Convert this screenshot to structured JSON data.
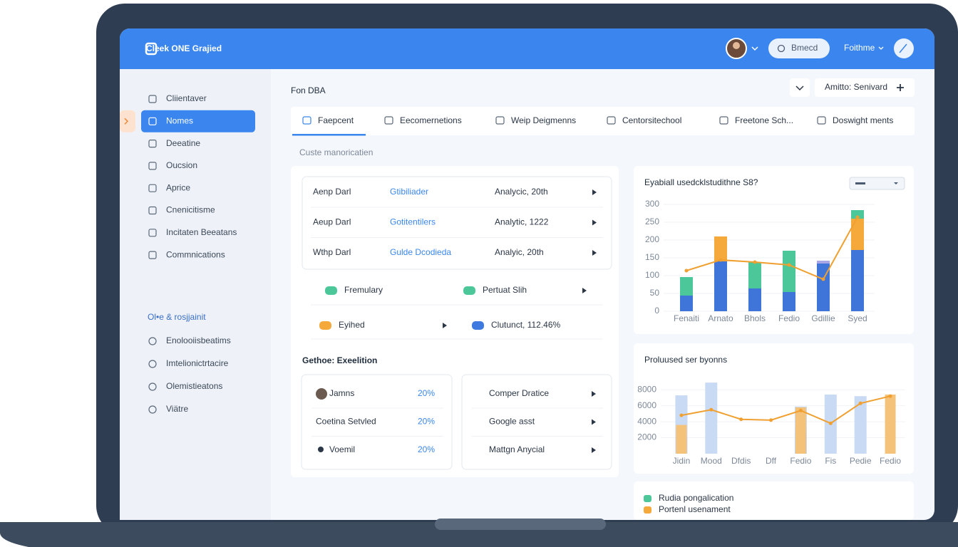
{
  "header": {
    "logo": "Cleek ONE Grajied",
    "button": "Bmecd",
    "menu": "Foithme"
  },
  "sidebar": {
    "items": [
      "Cliientaver",
      "Nomes",
      "Deeatine",
      "Oucsion",
      "Aprice",
      "Cnenicitisme",
      "Incitaten Beeatans",
      "Commnications"
    ],
    "active": 1,
    "section_title": "Ol•e & rosjjainit",
    "section_items": [
      "Enolooiisbeatims",
      "Imtelionictrtacire",
      "Olemistieatons",
      "Viätre"
    ]
  },
  "page": {
    "title": "Fon DBA",
    "action": "Amitto: Senivard"
  },
  "tabs": [
    "Faepcent",
    "Eecomernetions",
    "Weip Deigmenns",
    "Centorsitechool",
    "Freetone Sch...",
    "Doswight ments"
  ],
  "active_tab": 0,
  "section_label": "Custe manoricatien",
  "list_rows": [
    [
      "Aenp Darl",
      "Gtibiliader",
      "Analycic, 20th"
    ],
    [
      "Aeup Darl",
      "Gotitentilers",
      "Analytic, 1222"
    ],
    [
      "Wthp Darl",
      "Gulde Dcodieda",
      "Analyic, 20th"
    ]
  ],
  "status_items": [
    {
      "label": "Fremulary",
      "color": "#4cc79a"
    },
    {
      "label": "Pertuat Slih",
      "color": "#4cc79a"
    },
    {
      "label": "Eyihed",
      "color": "#f5a93a"
    },
    {
      "label": "Clutunct, 112.46%",
      "color": "#3f7ae0"
    }
  ],
  "section2_title": "Gethoe: Exeelition",
  "left_rows": [
    [
      "Jamns",
      "20%"
    ],
    [
      "Coetina Setvled",
      "20%"
    ],
    [
      "Voemil",
      "20%"
    ]
  ],
  "right_rows": [
    "Comper Dratice",
    "Google asst",
    "Mattgn Anycial"
  ],
  "charts": [
    {
      "type": "bar",
      "title": "Eyabiall usedcklstudithne S8?",
      "stacked": true,
      "categories": [
        "Fenaiti",
        "Arnato",
        "Bhols",
        "Fedio",
        "Gdillie",
        "Syed"
      ],
      "ylim": [
        0,
        300
      ],
      "yticks": [
        0,
        50,
        100,
        150,
        200,
        250,
        300
      ],
      "series": [
        {
          "kind": "bar",
          "color": "#3f74d9",
          "values": [
            44,
            140,
            64,
            54,
            134,
            172
          ]
        },
        {
          "kind": "bar",
          "color": "#4cc79a",
          "values": [
            52,
            null,
            74,
            116,
            null,
            null
          ]
        },
        {
          "kind": "bar",
          "color": "#f5a93a",
          "values": [
            null,
            70,
            null,
            null,
            null,
            88
          ]
        },
        {
          "kind": "bar",
          "color": "#a9a6e6",
          "values": [
            null,
            null,
            null,
            null,
            8,
            null
          ]
        },
        {
          "kind": "bar",
          "color": "#4cc79a",
          "values": [
            null,
            null,
            null,
            null,
            null,
            24
          ]
        },
        {
          "kind": "line",
          "color": "#f0a030",
          "values": [
            114,
            144,
            138,
            130,
            90,
            264
          ]
        }
      ]
    },
    {
      "type": "bar",
      "title": "Proluused ser byonns",
      "stacked": false,
      "categories": [
        "Jidin",
        "Mood",
        "Dfdis",
        "Dff",
        "Fedio",
        "Fis",
        "Pedie",
        "Fedio"
      ],
      "ylim": [
        0,
        9000
      ],
      "yticks": [
        2000,
        4000,
        6000,
        8000
      ],
      "series": [
        {
          "kind": "bar",
          "color": "#c9daf5",
          "values": [
            7300,
            8900,
            null,
            null,
            5900,
            7400,
            7200,
            null
          ]
        },
        {
          "kind": "bar",
          "color": "#3f7ae0",
          "values": [
            2000,
            null,
            null,
            null,
            2700,
            null,
            null,
            null
          ]
        },
        {
          "kind": "bar",
          "color": "#f5c27a",
          "values": [
            3600,
            null,
            null,
            null,
            5800,
            null,
            null,
            7400
          ]
        },
        {
          "kind": "line",
          "color": "#f0a030",
          "values": [
            4800,
            5500,
            4300,
            4200,
            5400,
            3800,
            6300,
            7200
          ]
        }
      ]
    }
  ],
  "legend": [
    {
      "label": "Rudia pongalication",
      "color": "#4cc79a"
    },
    {
      "label": "Portenl usenament",
      "color": "#f5a93a"
    }
  ]
}
